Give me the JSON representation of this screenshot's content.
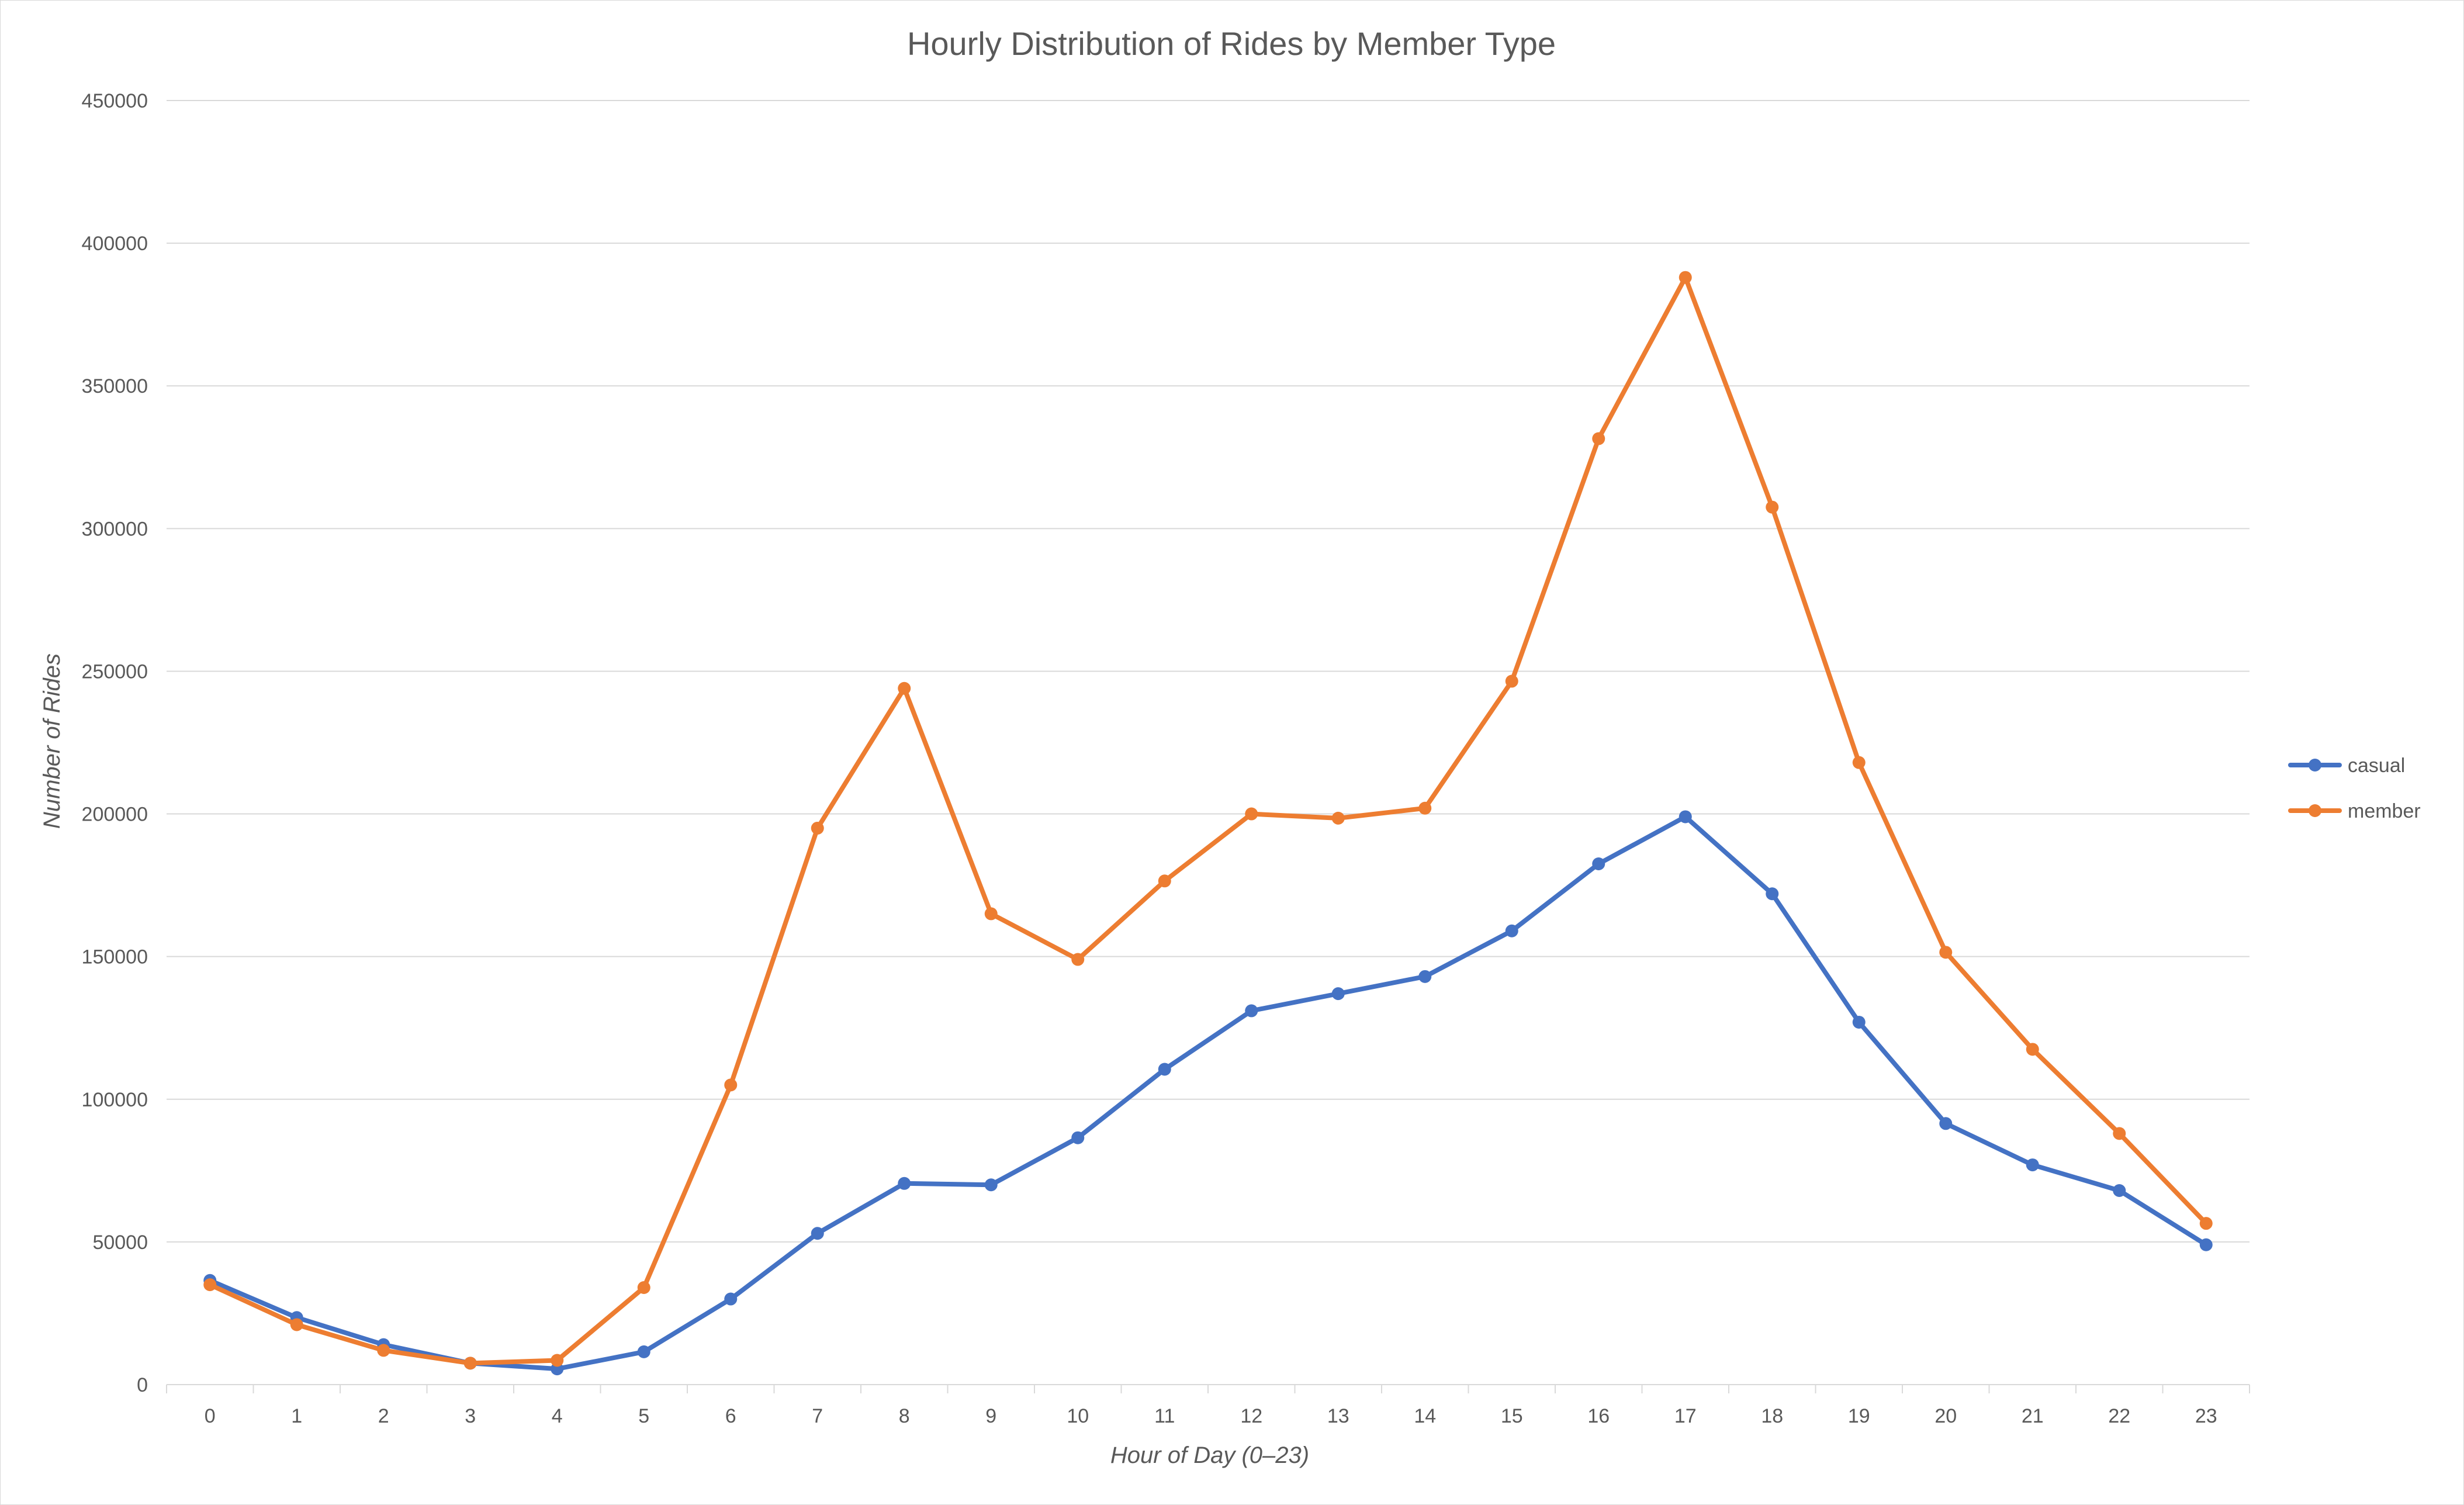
{
  "chart_data": {
    "type": "line",
    "title": "Hourly Distribution of Rides by Member Type",
    "xlabel": "Hour of Day (0–23)",
    "ylabel": "Number of Rides",
    "categories": [
      "0",
      "1",
      "2",
      "3",
      "4",
      "5",
      "6",
      "7",
      "8",
      "9",
      "10",
      "11",
      "12",
      "13",
      "14",
      "15",
      "16",
      "17",
      "18",
      "19",
      "20",
      "21",
      "22",
      "23"
    ],
    "ylim": [
      0,
      450000
    ],
    "yticks": [
      "0",
      "50000",
      "100000",
      "150000",
      "200000",
      "250000",
      "300000",
      "350000",
      "400000",
      "450000"
    ],
    "grid": true,
    "legend_position": "right",
    "series": [
      {
        "name": "casual",
        "color": "#4472C4",
        "values": [
          36500,
          23500,
          14000,
          7500,
          5500,
          11500,
          30000,
          53000,
          70500,
          70000,
          86500,
          110500,
          131000,
          137000,
          143000,
          159000,
          182500,
          199000,
          172000,
          127000,
          91500,
          77000,
          68000,
          49000
        ]
      },
      {
        "name": "member",
        "color": "#ED7D31",
        "values": [
          35000,
          21000,
          12000,
          7500,
          8500,
          34000,
          105000,
          195000,
          244000,
          165000,
          149000,
          176500,
          200000,
          198500,
          202000,
          246500,
          331500,
          388000,
          307500,
          218000,
          151500,
          117500,
          88000,
          56500
        ]
      }
    ]
  }
}
